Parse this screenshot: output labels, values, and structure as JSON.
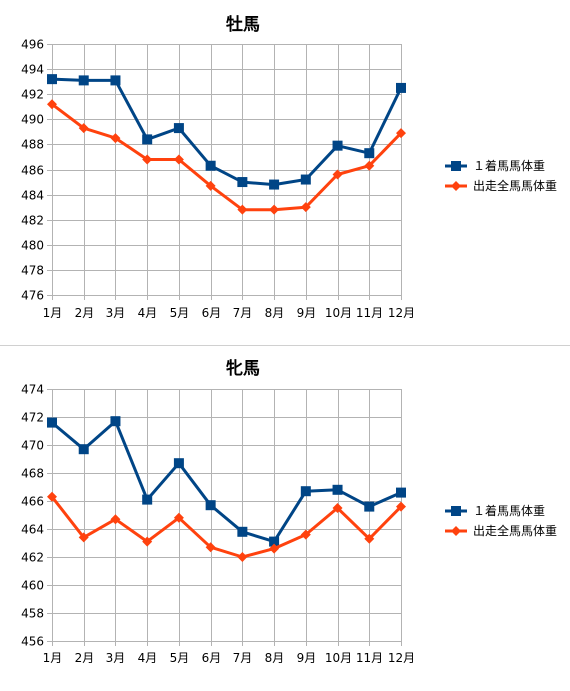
{
  "chart_data": [
    {
      "type": "line",
      "title": "牡馬",
      "categories": [
        "1月",
        "2月",
        "3月",
        "4月",
        "5月",
        "6月",
        "7月",
        "8月",
        "9月",
        "10月",
        "11月",
        "12月"
      ],
      "ylim": [
        476,
        496
      ],
      "ytick_step": 2,
      "grid": true,
      "legend_position": "right",
      "series": [
        {
          "name": "１着馬馬体重",
          "color": "#004586",
          "marker": "square",
          "values": [
            493.2,
            493.1,
            493.1,
            488.4,
            489.3,
            486.3,
            485.0,
            484.8,
            485.2,
            487.9,
            487.3,
            492.5
          ]
        },
        {
          "name": "出走全馬馬体重",
          "color": "#ff420e",
          "marker": "diamond",
          "values": [
            491.2,
            489.3,
            488.5,
            486.8,
            486.8,
            484.7,
            482.8,
            482.8,
            483.0,
            485.6,
            486.3,
            488.9
          ]
        }
      ]
    },
    {
      "type": "line",
      "title": "牝馬",
      "categories": [
        "1月",
        "2月",
        "3月",
        "4月",
        "5月",
        "6月",
        "7月",
        "8月",
        "9月",
        "10月",
        "11月",
        "12月"
      ],
      "ylim": [
        456,
        474
      ],
      "ytick_step": 2,
      "grid": true,
      "legend_position": "right",
      "series": [
        {
          "name": "１着馬馬体重",
          "color": "#004586",
          "marker": "square",
          "values": [
            471.6,
            469.7,
            471.7,
            466.1,
            468.7,
            465.7,
            463.8,
            463.1,
            466.7,
            466.8,
            465.6,
            466.6
          ]
        },
        {
          "name": "出走全馬馬体重",
          "color": "#ff420e",
          "marker": "diamond",
          "values": [
            466.3,
            463.4,
            464.7,
            463.1,
            464.8,
            462.7,
            462.0,
            462.6,
            463.6,
            465.5,
            463.3,
            465.6
          ]
        }
      ]
    }
  ]
}
